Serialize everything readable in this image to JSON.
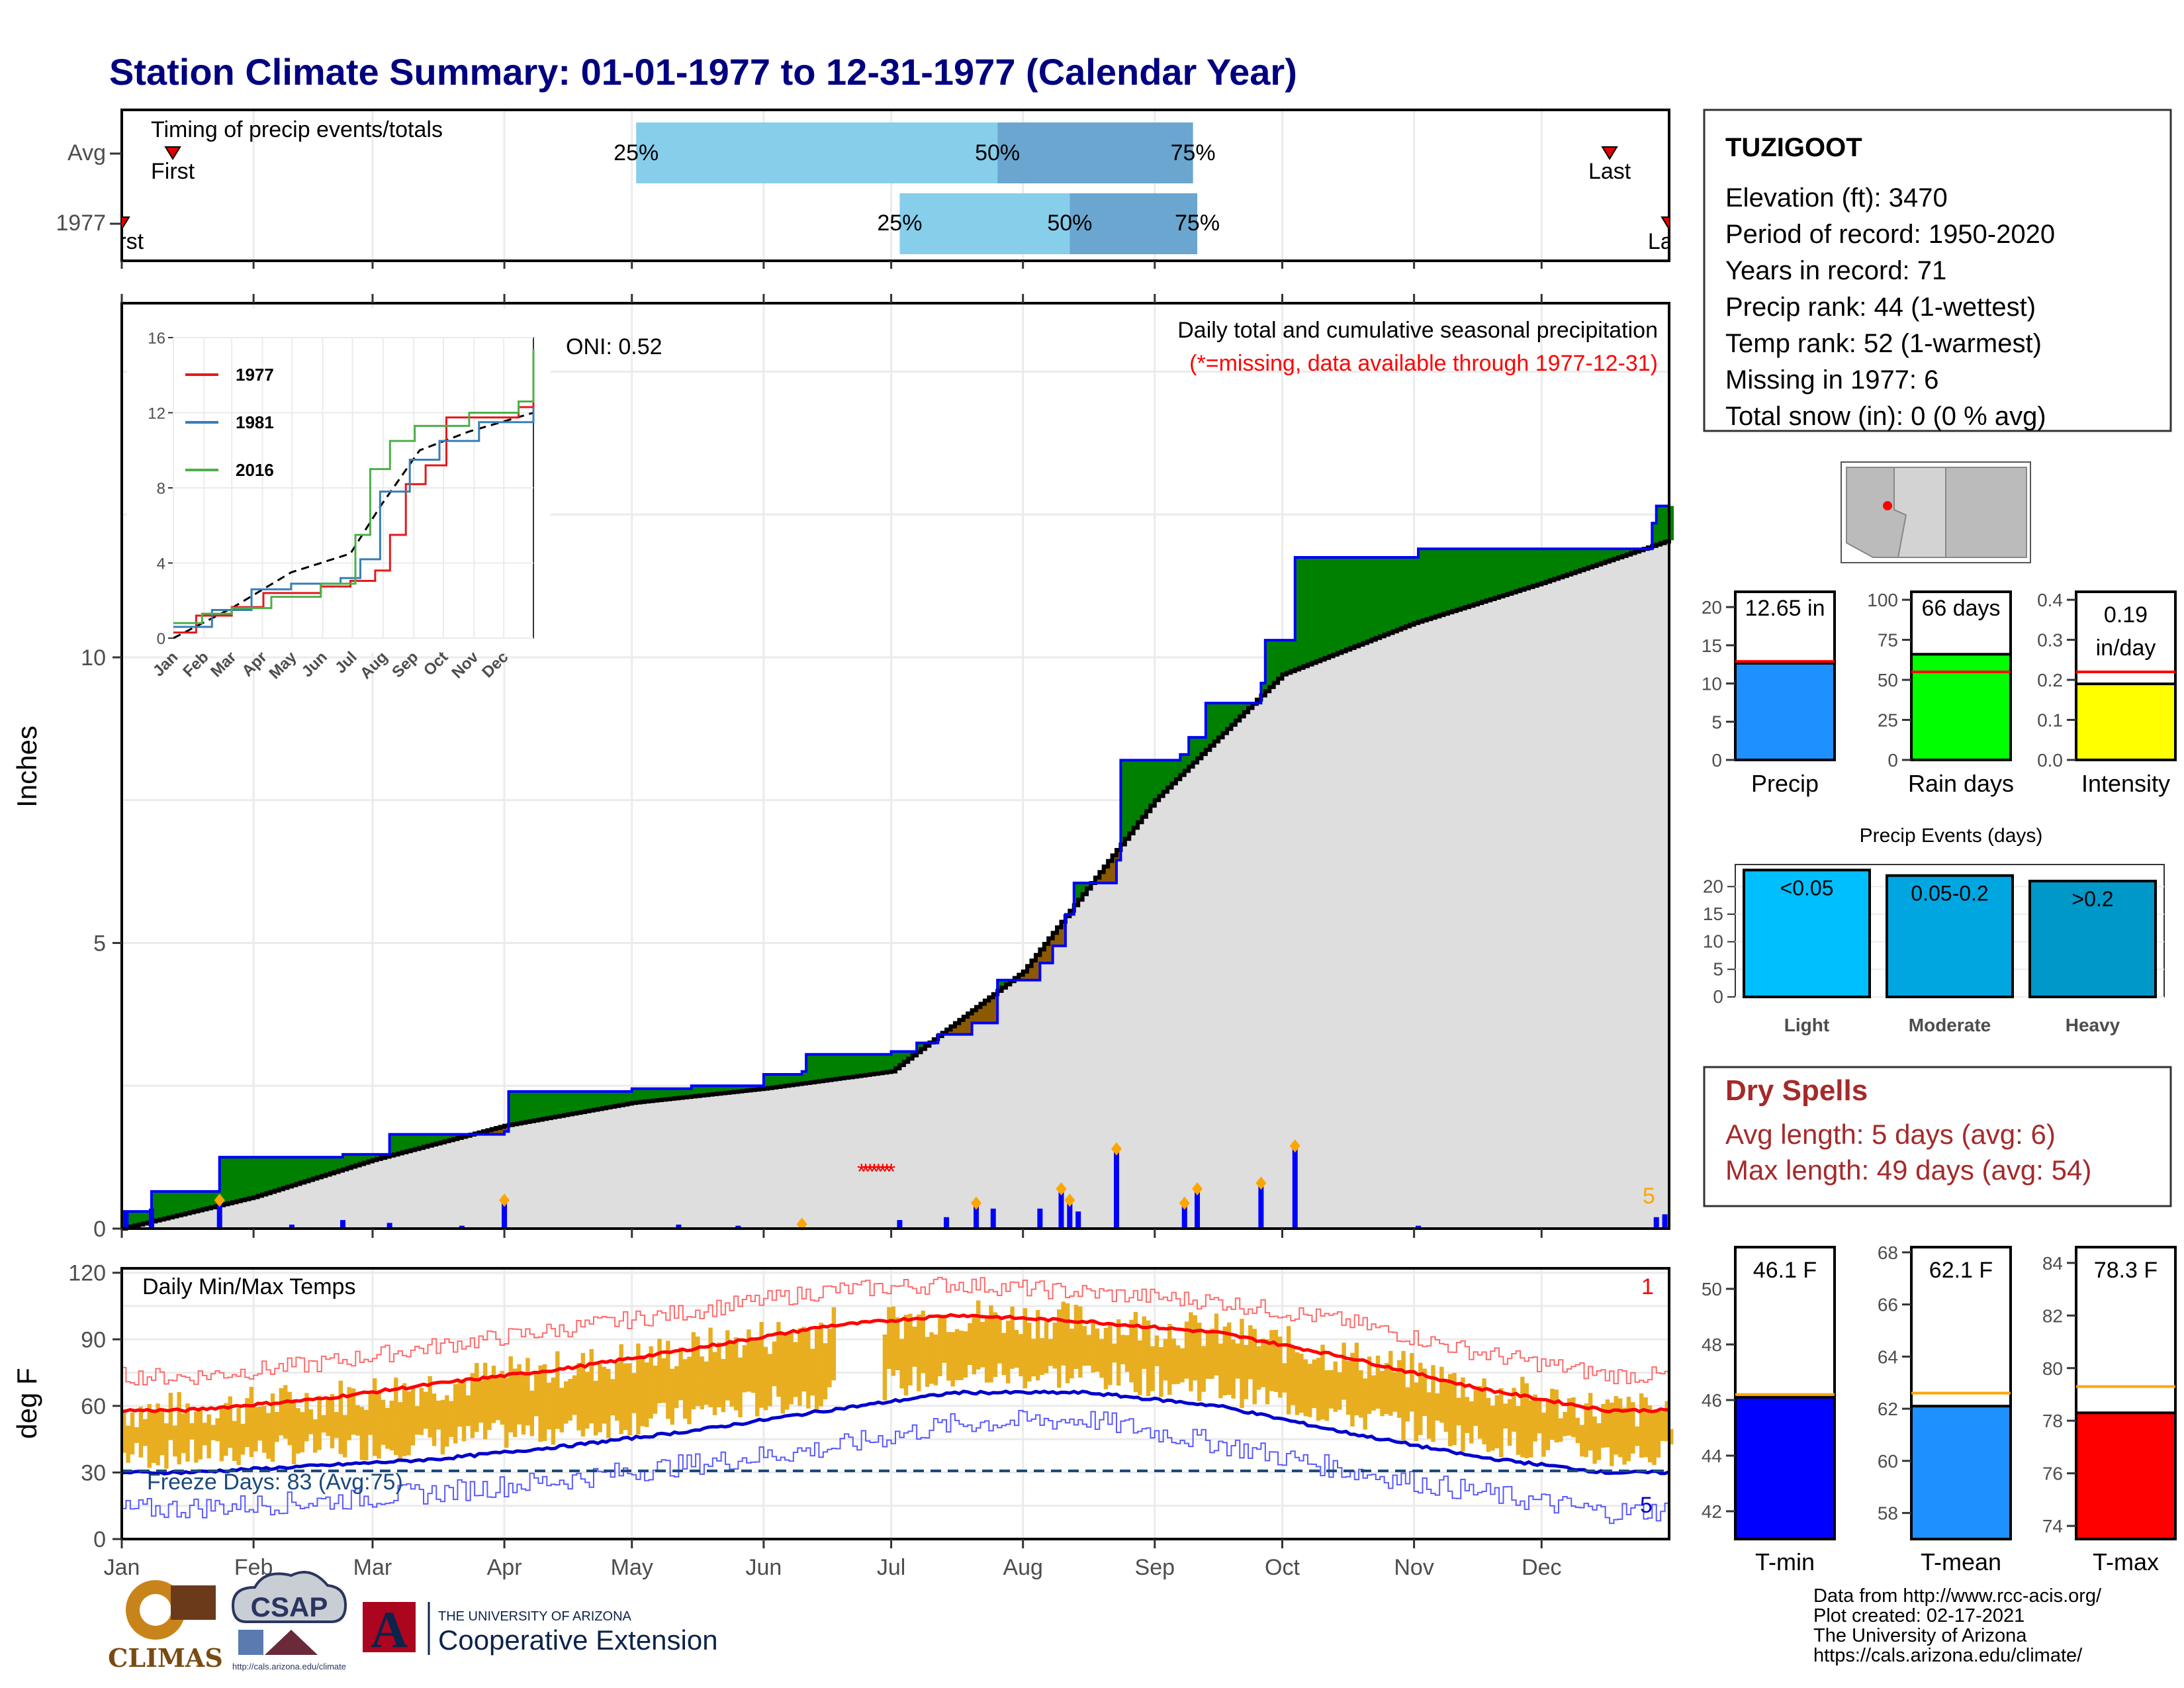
{
  "title": "Station Climate Summary: 01-01-1977 to 12-31-1977 (Calendar Year)",
  "colors": {
    "title": "#000080",
    "wet_surplus": "#008000",
    "dry_deficit": "#8b5a00",
    "normal_fill": "#dedede",
    "cum_line": "#0000ff",
    "bars": "#0000ff",
    "temp_bars": "#e8ae20",
    "tmax_avg": "#ff0000",
    "tmin_avg": "#0000cd",
    "light": "#00bfff",
    "moderate": "#00a6e0",
    "heavy": "#0097c9"
  },
  "timing": {
    "label": "Timing of precip events/totals",
    "rows": [
      "Avg",
      "1977"
    ],
    "avg": {
      "p25": "2023-05-02",
      "p50": "2023-07-26",
      "p75": "2023-09-10",
      "first": "2023-01-13",
      "last": "2023-12-17",
      "first_label": "First",
      "last_label": "Last",
      "p25_label": "25%",
      "p50_label": "50%",
      "p75_label": "75%"
    },
    "y1977": {
      "p25": "2023-07-03",
      "p50": "2023-08-12",
      "p75": "2023-09-11",
      "first_label": "First",
      "last_label": "Last",
      "p25_label": "25%",
      "p50_label": "50%",
      "p75_label": "75%"
    }
  },
  "main_plot": {
    "ylabel": "Inches",
    "yticks": [
      0,
      5,
      10
    ],
    "oni": "ONI: 0.52",
    "subtitle": "Daily total and cumulative seasonal precipitation",
    "missing_note": "(*=missing, data available through 1977-12-31)",
    "count_label": "5",
    "months": [
      "Jan",
      "Feb",
      "Mar",
      "Apr",
      "May",
      "Jun",
      "Jul",
      "Aug",
      "Sep",
      "Oct",
      "Nov",
      "Dec"
    ]
  },
  "inset": {
    "legend": [
      "1977",
      "1981",
      "2016"
    ],
    "legend_colors": [
      "#e41a1c",
      "#377eb8",
      "#4daf4a"
    ],
    "yticks": [
      0,
      4,
      8,
      12,
      16
    ],
    "months": [
      "Jan",
      "Feb",
      "Mar",
      "Apr",
      "May",
      "Jun",
      "Jul",
      "Aug",
      "Sep",
      "Oct",
      "Nov",
      "Dec"
    ]
  },
  "temp_plot": {
    "ylabel": "deg F",
    "label": "Daily Min/Max Temps",
    "freeze": "Freeze Days: 83 (Avg:75)",
    "yticks": [
      0,
      30,
      60,
      90,
      120
    ],
    "count_top": "1",
    "count_bottom": "5",
    "months": [
      "Jan",
      "Feb",
      "Mar",
      "Apr",
      "May",
      "Jun",
      "Jul",
      "Aug",
      "Sep",
      "Oct",
      "Nov",
      "Dec"
    ]
  },
  "station": {
    "name": "TUZIGOOT",
    "lines": [
      "Elevation (ft): 3470",
      "Period of record: 1950-2020",
      "Years in record: 71",
      "Precip rank: 44 (1-wettest)",
      "Temp rank: 52 (1-warmest)",
      "Missing in 1977: 6",
      "Total snow (in): 0 (0 % avg)"
    ]
  },
  "summary_bars": [
    {
      "label": "Precip",
      "value_label": "12.65 in",
      "value": 12.65,
      "avg": 12.9,
      "ymax": 22,
      "yticks": [
        0,
        5,
        10,
        15,
        20
      ],
      "color": "#1e90ff"
    },
    {
      "label": "Rain days",
      "value_label": "66 days",
      "value": 66,
      "avg": 55,
      "ymax": 105,
      "yticks": [
        0,
        25,
        50,
        75,
        100
      ],
      "color": "#00ff00"
    },
    {
      "label": "Intensity",
      "value_label": "0.19 in/day",
      "value_line1": "0.19",
      "value_line2": "in/day",
      "value": 0.19,
      "avg": 0.22,
      "ymax": 0.42,
      "yticks": [
        "0.0",
        "0.1",
        "0.2",
        "0.3",
        "0.4"
      ],
      "color": "#ffff00"
    }
  ],
  "precip_events": {
    "title": "Precip Events (days)",
    "categories": [
      "Light",
      "Moderate",
      "Heavy"
    ],
    "ranges": [
      "<0.05",
      "0.05-0.2",
      ">0.2"
    ],
    "values": [
      23,
      22,
      21
    ],
    "yticks": [
      0,
      5,
      10,
      15,
      20
    ]
  },
  "dry_spells": {
    "title": "Dry Spells",
    "avg_length": "Avg length: 5 days (avg: 6)",
    "max_length": "Max length: 49 days (avg: 54)"
  },
  "temp_bars": [
    {
      "label": "T-min",
      "value_label": "46.1 F",
      "value": 46.1,
      "avg": 46.2,
      "ylim": [
        41,
        51.5
      ],
      "yticks": [
        42,
        44,
        46,
        48,
        50
      ],
      "color": "#0000ff"
    },
    {
      "label": "T-mean",
      "value_label": "62.1 F",
      "value": 62.1,
      "avg": 62.6,
      "ylim": [
        57,
        68.2
      ],
      "yticks": [
        58,
        60,
        62,
        64,
        66,
        68
      ],
      "color": "#1e90ff"
    },
    {
      "label": "T-max",
      "value_label": "78.3 F",
      "value": 78.3,
      "avg": 79.3,
      "ylim": [
        73.5,
        84.6
      ],
      "yticks": [
        74,
        76,
        78,
        80,
        82,
        84
      ],
      "color": "#ff0000"
    }
  ],
  "footer": {
    "credits": [
      "Data from http://www.rcc-acis.org/",
      "Plot created: 02-17-2021",
      "The University of Arizona",
      "https://cals.arizona.edu/climate/"
    ],
    "climas": "CLIMAS",
    "csap": "CSAP",
    "csap_url": "http://cals.arizona.edu/climate",
    "ua_top": "THE UNIVERSITY OF ARIZONA",
    "ua_name": "Cooperative Extension",
    "ua_letter": "A"
  },
  "chart_data": [
    {
      "type": "area",
      "title": "Daily total and cumulative seasonal precipitation",
      "ylabel": "Inches",
      "ylim": [
        0,
        16.2
      ],
      "cumulative_1977": [
        [
          "1977-01-01",
          0.3
        ],
        [
          "1977-01-08",
          0.65
        ],
        [
          "1977-01-23",
          0.65
        ],
        [
          "1977-01-24",
          1.25
        ],
        [
          "1977-02-22",
          1.3
        ],
        [
          "1977-03-05",
          1.65
        ],
        [
          "1977-04-01",
          1.7
        ],
        [
          "1977-04-02",
          2.4
        ],
        [
          "1977-05-01",
          2.45
        ],
        [
          "1977-05-15",
          2.5
        ],
        [
          "1977-06-01",
          2.7
        ],
        [
          "1977-06-10",
          2.75
        ],
        [
          "1977-06-11",
          3.05
        ],
        [
          "1977-07-01",
          3.1
        ],
        [
          "1977-07-07",
          3.25
        ],
        [
          "1977-07-12",
          3.4
        ],
        [
          "1977-07-20",
          3.6
        ],
        [
          "1977-07-26",
          4.35
        ],
        [
          "1977-08-05",
          4.65
        ],
        [
          "1977-08-08",
          4.95
        ],
        [
          "1977-08-11",
          5.5
        ],
        [
          "1977-08-13",
          6.05
        ],
        [
          "1977-08-23",
          6.45
        ],
        [
          "1977-08-24",
          8.2
        ],
        [
          "1977-09-07",
          8.3
        ],
        [
          "1977-09-09",
          8.6
        ],
        [
          "1977-09-13",
          9.2
        ],
        [
          "1977-09-26",
          9.55
        ],
        [
          "1977-09-27",
          10.3
        ],
        [
          "1977-10-04",
          11.75
        ],
        [
          "1977-11-02",
          11.9
        ],
        [
          "1977-12-27",
          12.35
        ],
        [
          "1977-12-28",
          12.65
        ],
        [
          "1977-12-31",
          12.65
        ]
      ],
      "cumulative_normal": [
        [
          "1977-01-01",
          0.0
        ],
        [
          "1977-02-01",
          0.55
        ],
        [
          "1977-03-01",
          1.2
        ],
        [
          "1977-04-01",
          1.8
        ],
        [
          "1977-05-01",
          2.2
        ],
        [
          "1977-06-01",
          2.45
        ],
        [
          "1977-07-01",
          2.75
        ],
        [
          "1977-08-01",
          4.5
        ],
        [
          "1977-09-01",
          7.5
        ],
        [
          "1977-10-01",
          9.7
        ],
        [
          "1977-11-01",
          10.6
        ],
        [
          "1977-12-01",
          11.3
        ],
        [
          "1977-12-31",
          12.05
        ]
      ],
      "daily": [
        [
          "1977-01-02",
          0.3
        ],
        [
          "1977-01-08",
          0.35
        ],
        [
          "1977-01-24",
          0.45
        ],
        [
          "1977-02-10",
          0.07
        ],
        [
          "1977-02-22",
          0.15
        ],
        [
          "1977-03-05",
          0.1
        ],
        [
          "1977-03-22",
          0.05
        ],
        [
          "1977-04-01",
          0.45
        ],
        [
          "1977-05-12",
          0.07
        ],
        [
          "1977-05-26",
          0.05
        ],
        [
          "1977-06-10",
          0.03
        ],
        [
          "1977-07-03",
          0.15
        ],
        [
          "1977-07-14",
          0.2
        ],
        [
          "1977-07-21",
          0.4
        ],
        [
          "1977-07-25",
          0.35
        ],
        [
          "1977-08-05",
          0.35
        ],
        [
          "1977-08-10",
          0.65
        ],
        [
          "1977-08-12",
          0.45
        ],
        [
          "1977-08-14",
          0.3
        ],
        [
          "1977-08-23",
          1.35
        ],
        [
          "1977-09-08",
          0.4
        ],
        [
          "1977-09-11",
          0.65
        ],
        [
          "1977-09-26",
          0.75
        ],
        [
          "1977-10-04",
          1.4
        ],
        [
          "1977-11-02",
          0.05
        ],
        [
          "1977-12-28",
          0.2
        ],
        [
          "1977-12-30",
          0.25
        ]
      ]
    },
    {
      "type": "line",
      "title": "Cumulative precipitation inset",
      "ylim": [
        0,
        16
      ],
      "series": [
        {
          "name": "1977",
          "values": [
            [
              1,
              0.3
            ],
            [
              24,
              1.2
            ],
            [
              60,
              1.65
            ],
            [
              92,
              2.4
            ],
            [
              150,
              2.75
            ],
            [
              180,
              3.05
            ],
            [
              205,
              3.6
            ],
            [
              220,
              5.5
            ],
            [
              236,
              8.2
            ],
            [
              256,
              9.2
            ],
            [
              277,
              11.75
            ],
            [
              350,
              12.3
            ],
            [
              365,
              12.65
            ]
          ]
        },
        {
          "name": "1981",
          "values": [
            [
              1,
              0.6
            ],
            [
              40,
              1.5
            ],
            [
              80,
              2.6
            ],
            [
              120,
              2.9
            ],
            [
              170,
              3.2
            ],
            [
              190,
              4.2
            ],
            [
              210,
              7.8
            ],
            [
              240,
              9.5
            ],
            [
              270,
              10.5
            ],
            [
              310,
              11.5
            ],
            [
              365,
              12.3
            ]
          ]
        },
        {
          "name": "2016",
          "values": [
            [
              1,
              0.8
            ],
            [
              30,
              1.3
            ],
            [
              60,
              1.6
            ],
            [
              100,
              2.2
            ],
            [
              150,
              2.9
            ],
            [
              185,
              5.5
            ],
            [
              200,
              9.0
            ],
            [
              220,
              10.5
            ],
            [
              245,
              11.3
            ],
            [
              300,
              12.0
            ],
            [
              350,
              12.6
            ],
            [
              365,
              15.4
            ]
          ]
        }
      ],
      "normal": [
        [
          1,
          0
        ],
        [
          60,
          1.6
        ],
        [
          120,
          3.5
        ],
        [
          180,
          4.5
        ],
        [
          210,
          7.0
        ],
        [
          250,
          10.0
        ],
        [
          300,
          11.0
        ],
        [
          365,
          12.0
        ]
      ]
    },
    {
      "type": "bar",
      "title": "Daily Min/Max Temps",
      "ylabel": "deg F",
      "ylim": [
        0,
        122
      ],
      "tmax_avg_monthly": [
        58,
        63,
        70,
        77,
        86,
        96,
        101,
        98,
        93,
        82,
        68,
        58
      ],
      "tmin_avg_monthly": [
        30,
        33,
        36,
        42,
        49,
        58,
        66,
        66,
        60,
        48,
        37,
        30
      ],
      "record_max_monthly": [
        73,
        79,
        87,
        95,
        103,
        112,
        115,
        111,
        107,
        98,
        84,
        74
      ],
      "record_min_monthly": [
        14,
        17,
        21,
        27,
        34,
        41,
        52,
        54,
        43,
        31,
        21,
        12
      ]
    }
  ]
}
